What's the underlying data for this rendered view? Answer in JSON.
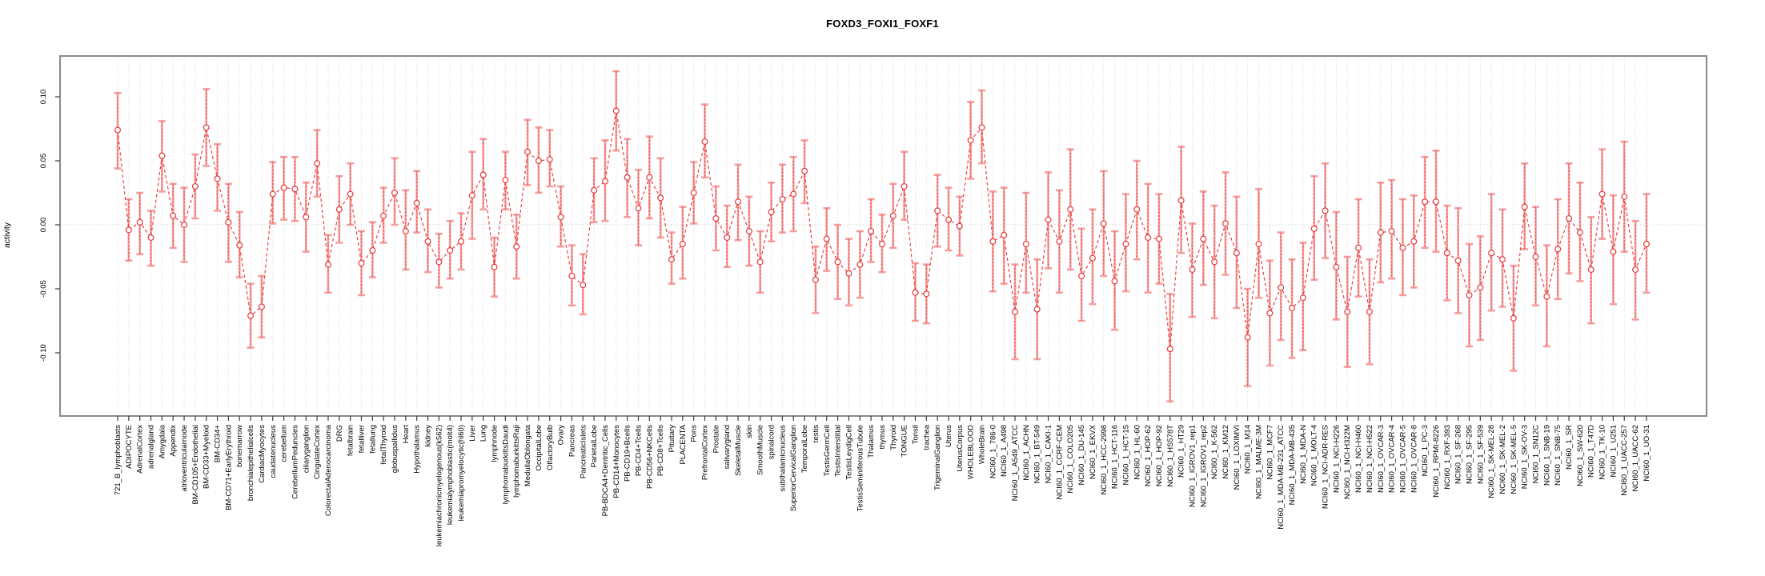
{
  "chart_data": {
    "type": "line",
    "subtype": "point-estimates-with-error-bars",
    "title": "FOXD3_FOXI1_FOXF1",
    "xlabel": "",
    "ylabel": "activity",
    "ylim": [
      -0.149,
      0.132
    ],
    "ytick_labels": [
      "0.10",
      "0.05",
      "0.00",
      "-0.05",
      "-0.10"
    ],
    "ytick_values": [
      0.1,
      0.05,
      0.0,
      -0.05,
      -0.1
    ],
    "grid": "vertical dashed gridline per category; dotted horizontal line at y=0",
    "legend_position": "none",
    "colors": {
      "point": "#e64545",
      "connector": "#e64545",
      "whisker": "#f59e9e",
      "gridline": "#dedede",
      "zero_line": "#d4d4d4",
      "box": "#898989",
      "tick": "#3d3d3d",
      "text": "#000000"
    },
    "categories": [
      "721_B_lymphoblasts",
      "ADIPOCYTE",
      "AdrenalCortex",
      "adrenalgland",
      "Amygdala",
      "Appendix",
      "atrioventricularnode",
      "BM-CD105+Endothelial",
      "BM-CD33+Myeloid",
      "BM-CD34+",
      "BM-CD71+EarlyErythroid",
      "bonemarrow",
      "bronchialepithelialcells",
      "CardiacMyocytes",
      "caudatenucleus",
      "cerebellum",
      "CerebellumPeduncles",
      "ciliaryganglion",
      "CingulateCortex",
      "ColorectalAdenocarcinoma",
      "DRG",
      "fetalbrain",
      "fetalliver",
      "fetallung",
      "fetalThyroid",
      "globuspallidus",
      "Heart",
      "Hypothalamus",
      "kidney",
      "leukemiachronicmyelogenous(k562)",
      "leukemialymphoblastic(molt4)",
      "leukemiapromyelocytic(hl60)",
      "Liver",
      "Lung",
      "lymphnode",
      "lymphomaburkittsDaudi",
      "lymphomaburkittsRaji",
      "MedullaOblongata",
      "OccipitalLobe",
      "OlfactoryBulb",
      "Ovary",
      "Pancreas",
      "PancreaticIslets",
      "ParietalLobe",
      "PB-BDCA4+Dentritic_Cells",
      "PB-CD14+Monocytes",
      "PB-CD19+Bcells",
      "PB-CD4+Tcells",
      "PB-CD56+NKCells",
      "PB-CD8+Tcells",
      "Pituitary",
      "PLACENTA",
      "Pons",
      "PrefrontalCortex",
      "Prostate",
      "salivarygland",
      "SkeletalMuscle",
      "skin",
      "SmoothMuscle",
      "spinalcord",
      "subthalamicnucleus",
      "SuperiorCervicalGanglion",
      "TemporalLobe",
      "testis",
      "TestisGermCell",
      "TestisInterstitial",
      "TestisLeydigCell",
      "TestisSeminiferousTubule",
      "Thalamus",
      "thymus",
      "Thyroid",
      "TONGUE",
      "Tonsil",
      "trachea",
      "TrigeminalGanglion",
      "Uterus",
      "UterusCorpus",
      "WHOLEBLOOD",
      "WholeBrain",
      "NCI60_1_786-0",
      "NCI60_1_A498",
      "NCI60_1_A549_ATCC",
      "NCI60_1_ACHN",
      "NCI60_1_BT-549",
      "NCI60_1_CAKI-1",
      "NCI60_1_CCRF-CEM",
      "NCI60_1_COLO205",
      "NCI60_1_DU-145",
      "NCI60_1_EKVX",
      "NCI60_1_HCC-2998",
      "NCI60_1_HCT-116",
      "NCI60_1_HCT-15",
      "NCI60_1_HL-60",
      "NCI60_1_HOP-62",
      "NCI60_1_HOP-92",
      "NCI60_1_HS578T",
      "NCI60_1_HT29",
      "NCI60_1_IGROV1_rep1",
      "NCI60_1_IGROV1_rep2",
      "NCI60_1_K-562",
      "NCI60_1_KM12",
      "NCI60_1_LOXIMVI",
      "NCI60_1_M14",
      "NCI60_1_MALME-3M",
      "NCI60_1_MCF7",
      "NCI60_1_MDA-MB-231_ATCC",
      "NCI60_1_MDA-MB-435",
      "NCI60_1_MDA-N",
      "NCI60_1_MOLT-4",
      "NCI60_1_NCI-ADR-RES",
      "NCI60_1_NCI-H226",
      "NCI60_1_NCI-H322M",
      "NCI60_1_NCI-H460",
      "NCI60_1_NCI-H522",
      "NCI60_1_OVCAR-3",
      "NCI60_1_OVCAR-4",
      "NCI60_1_OVCAR-5",
      "NCI60_1_OVCAR-8",
      "NCI60_1_PC-3",
      "NCI60_1_RPMI-8226",
      "NCI60_1_RXF-393",
      "NCI60_1_SF-268",
      "NCI60_1_SF-295",
      "NCI60_1_SF-539",
      "NCI60_1_SK-MEL-28",
      "NCI60_1_SK-MEL-2",
      "NCI60_1_SK-MEL-5",
      "NCI60_1_SK-OV-3",
      "NCI60_1_SN12C",
      "NCI60_1_SNB-19",
      "NCI60_1_SNB-75",
      "NCI60_1_SR",
      "NCI60_1_SW-620",
      "NCI60_1_T47D",
      "NCI60_1_TK-10",
      "NCI60_1_U251",
      "NCI60_1_UACC-257",
      "NCI60_1_UACC-62",
      "NCI60_1_UO-31"
    ],
    "series": [
      {
        "name": "activity",
        "values": [
          0.074,
          -0.004,
          0.002,
          -0.01,
          0.054,
          0.007,
          0.0,
          0.03,
          0.076,
          0.036,
          0.002,
          -0.016,
          -0.071,
          -0.064,
          0.024,
          0.029,
          0.028,
          0.006,
          0.048,
          -0.031,
          0.012,
          0.024,
          -0.03,
          -0.02,
          0.007,
          0.025,
          -0.005,
          0.017,
          -0.013,
          -0.029,
          -0.02,
          -0.013,
          0.023,
          0.039,
          -0.033,
          0.035,
          -0.017,
          0.057,
          0.05,
          0.051,
          0.006,
          -0.04,
          -0.047,
          0.027,
          0.034,
          0.089,
          0.037,
          0.013,
          0.037,
          0.021,
          -0.027,
          -0.015,
          0.025,
          0.065,
          0.005,
          -0.01,
          0.018,
          -0.005,
          -0.029,
          0.01,
          0.02,
          0.024,
          0.042,
          -0.043,
          -0.011,
          -0.029,
          -0.038,
          -0.031,
          -0.005,
          -0.015,
          0.007,
          0.03,
          -0.053,
          -0.054,
          0.011,
          0.004,
          -0.001,
          0.066,
          0.076,
          -0.013,
          -0.008,
          -0.068,
          -0.015,
          -0.066,
          0.004,
          -0.013,
          0.012,
          -0.04,
          -0.026,
          0.001,
          -0.044,
          -0.015,
          0.012,
          -0.01,
          -0.011,
          -0.097,
          0.019,
          -0.035,
          -0.011,
          -0.029,
          0.001,
          -0.022,
          -0.088,
          -0.015,
          -0.069,
          -0.049,
          -0.065,
          -0.057,
          -0.003,
          0.011,
          -0.033,
          -0.068,
          -0.018,
          -0.068,
          -0.006,
          -0.005,
          -0.018,
          -0.013,
          0.018,
          0.018,
          -0.022,
          -0.028,
          -0.055,
          -0.049,
          -0.022,
          -0.027,
          -0.073,
          0.014,
          -0.025,
          -0.056,
          -0.019,
          0.005,
          -0.006,
          -0.035,
          0.024,
          -0.021,
          0.022,
          -0.035,
          -0.015
        ],
        "lower": [
          0.044,
          -0.028,
          -0.023,
          -0.032,
          0.026,
          -0.018,
          -0.029,
          0.005,
          0.046,
          0.011,
          -0.029,
          -0.041,
          -0.096,
          -0.088,
          0.001,
          0.004,
          0.003,
          -0.021,
          0.022,
          -0.053,
          -0.014,
          0.0,
          -0.055,
          -0.041,
          -0.014,
          0.0,
          -0.035,
          -0.006,
          -0.037,
          -0.049,
          -0.042,
          -0.035,
          -0.011,
          0.012,
          -0.056,
          0.012,
          -0.042,
          0.031,
          0.025,
          0.03,
          -0.017,
          -0.063,
          -0.07,
          0.002,
          0.003,
          0.058,
          0.006,
          -0.016,
          0.005,
          -0.01,
          -0.046,
          -0.042,
          0.001,
          0.037,
          -0.02,
          -0.033,
          -0.012,
          -0.032,
          -0.053,
          -0.013,
          -0.006,
          -0.005,
          0.017,
          -0.069,
          -0.036,
          -0.058,
          -0.063,
          -0.057,
          -0.029,
          -0.037,
          -0.018,
          0.004,
          -0.075,
          -0.077,
          -0.017,
          -0.02,
          -0.024,
          0.036,
          0.048,
          -0.052,
          -0.046,
          -0.105,
          -0.053,
          -0.105,
          -0.034,
          -0.053,
          -0.035,
          -0.075,
          -0.062,
          -0.04,
          -0.082,
          -0.052,
          -0.027,
          -0.053,
          -0.046,
          -0.138,
          -0.022,
          -0.072,
          -0.047,
          -0.073,
          -0.039,
          -0.065,
          -0.126,
          -0.057,
          -0.11,
          -0.09,
          -0.104,
          -0.098,
          -0.043,
          -0.026,
          -0.074,
          -0.111,
          -0.056,
          -0.109,
          -0.045,
          -0.042,
          -0.055,
          -0.049,
          -0.018,
          -0.021,
          -0.059,
          -0.069,
          -0.095,
          -0.09,
          -0.067,
          -0.064,
          -0.114,
          -0.019,
          -0.063,
          -0.095,
          -0.058,
          -0.038,
          -0.044,
          -0.077,
          -0.011,
          -0.062,
          -0.021,
          -0.074,
          -0.053
        ],
        "upper": [
          0.103,
          0.02,
          0.025,
          0.011,
          0.081,
          0.032,
          0.029,
          0.055,
          0.106,
          0.063,
          0.032,
          0.01,
          -0.046,
          -0.04,
          0.049,
          0.053,
          0.053,
          0.033,
          0.074,
          -0.008,
          0.038,
          0.048,
          -0.005,
          0.002,
          0.029,
          0.052,
          0.027,
          0.042,
          0.012,
          -0.007,
          0.003,
          0.009,
          0.057,
          0.067,
          -0.01,
          0.057,
          0.008,
          0.082,
          0.076,
          0.074,
          0.03,
          -0.016,
          -0.023,
          0.052,
          0.066,
          0.12,
          0.067,
          0.043,
          0.069,
          0.052,
          -0.006,
          0.014,
          0.049,
          0.094,
          0.03,
          0.015,
          0.047,
          0.022,
          -0.005,
          0.033,
          0.047,
          0.053,
          0.066,
          -0.017,
          0.013,
          0.0,
          -0.011,
          -0.005,
          0.02,
          0.008,
          0.032,
          0.057,
          -0.03,
          -0.031,
          0.039,
          0.029,
          0.022,
          0.096,
          0.105,
          0.026,
          0.029,
          -0.031,
          0.025,
          -0.027,
          0.041,
          0.027,
          0.059,
          -0.003,
          0.012,
          0.042,
          -0.005,
          0.024,
          0.05,
          0.032,
          0.024,
          -0.054,
          0.061,
          0.001,
          0.026,
          0.015,
          0.041,
          0.022,
          -0.05,
          0.028,
          -0.028,
          -0.006,
          -0.027,
          -0.014,
          0.038,
          0.048,
          0.01,
          -0.025,
          0.02,
          -0.027,
          0.033,
          0.035,
          0.02,
          0.023,
          0.053,
          0.058,
          0.015,
          0.013,
          -0.015,
          -0.009,
          0.024,
          0.012,
          -0.032,
          0.048,
          0.014,
          -0.016,
          0.02,
          0.048,
          0.033,
          0.006,
          0.059,
          0.023,
          0.065,
          0.003,
          0.024
        ]
      }
    ]
  }
}
